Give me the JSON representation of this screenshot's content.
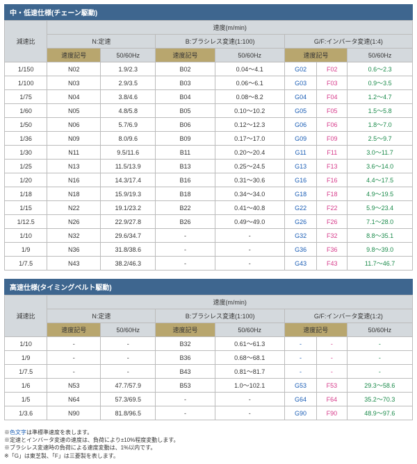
{
  "t1": {
    "title": "中・低速仕様(チェーン駆動)",
    "h_speed": "速度(m/min)",
    "h_ratio": "減速比",
    "h_n": "N:定速",
    "h_b": "B:ブラシレス変速(1:100)",
    "h_gf": "G/F:インバータ変速(1:4)",
    "h_code": "速度記号",
    "h_hz": "50/60Hz",
    "rows": [
      [
        "1/150",
        "N02",
        "1.9/2.3",
        "B02",
        "0.04～4.1",
        "G02",
        "F02",
        "0.6～2.3"
      ],
      [
        "1/100",
        "N03",
        "2.9/3.5",
        "B03",
        "0.06～6.1",
        "G03",
        "F03",
        "0.9～3.5"
      ],
      [
        "1/75",
        "N04",
        "3.8/4.6",
        "B04",
        "0.08～8.2",
        "G04",
        "F04",
        "1.2～4.7"
      ],
      [
        "1/60",
        "N05",
        "4.8/5.8",
        "B05",
        "0.10～10.2",
        "G05",
        "F05",
        "1.5～5.8"
      ],
      [
        "1/50",
        "N06",
        "5.7/6.9",
        "B06",
        "0.12～12.3",
        "G06",
        "F06",
        "1.8～7.0"
      ],
      [
        "1/36",
        "N09",
        "8.0/9.6",
        "B09",
        "0.17～17.0",
        "G09",
        "F09",
        "2.5～9.7"
      ],
      [
        "1/30",
        "N11",
        "9.5/11.6",
        "B11",
        "0.20～20.4",
        "G11",
        "F11",
        "3.0～11.7"
      ],
      [
        "1/25",
        "N13",
        "11.5/13.9",
        "B13",
        "0.25～24.5",
        "G13",
        "F13",
        "3.6～14.0"
      ],
      [
        "1/20",
        "N16",
        "14.3/17.4",
        "B16",
        "0.31～30.6",
        "G16",
        "F16",
        "4.4～17.5"
      ],
      [
        "1/18",
        "N18",
        "15.9/19.3",
        "B18",
        "0.34～34.0",
        "G18",
        "F18",
        "4.9～19.5"
      ],
      [
        "1/15",
        "N22",
        "19.1/23.2",
        "B22",
        "0.41～40.8",
        "G22",
        "F22",
        "5.9～23.4"
      ],
      [
        "1/12.5",
        "N26",
        "22.9/27.8",
        "B26",
        "0.49～49.0",
        "G26",
        "F26",
        "7.1～28.0"
      ],
      [
        "1/10",
        "N32",
        "29.6/34.7",
        "-",
        "-",
        "G32",
        "F32",
        "8.8～35.1"
      ],
      [
        "1/9",
        "N36",
        "31.8/38.6",
        "-",
        "-",
        "G36",
        "F36",
        "9.8～39.0"
      ],
      [
        "1/7.5",
        "N43",
        "38.2/46.3",
        "-",
        "-",
        "G43",
        "F43",
        "11.7～46.7"
      ]
    ]
  },
  "t2": {
    "title": "高速仕様(タイミングベルト駆動)",
    "h_speed": "速度(m/min)",
    "h_ratio": "減速比",
    "h_n": "N:定速",
    "h_b": "B:ブラシレス変速(1:100)",
    "h_gf": "G/F:インバータ変速(1:2)",
    "h_code": "速度記号",
    "h_hz": "50/60Hz",
    "rows": [
      [
        "1/10",
        "-",
        "-",
        "B32",
        "0.61～61.3",
        "-",
        "-",
        "-"
      ],
      [
        "1/9",
        "-",
        "-",
        "B36",
        "0.68～68.1",
        "-",
        "-",
        "-"
      ],
      [
        "1/7.5",
        "-",
        "-",
        "B43",
        "0.81～81.7",
        "-",
        "-",
        "-"
      ],
      [
        "1/6",
        "N53",
        "47.7/57.9",
        "B53",
        "1.0～102.1",
        "G53",
        "F53",
        "29.3～58.6"
      ],
      [
        "1/5",
        "N64",
        "57.3/69.5",
        "-",
        "-",
        "G64",
        "F64",
        "35.2～70.3"
      ],
      [
        "1/3.6",
        "N90",
        "81.8/96.5",
        "-",
        "-",
        "G90",
        "F90",
        "48.9～97.6"
      ]
    ]
  },
  "notes": [
    "※色文字は準標準速度を表します。",
    "※定速とインバータ変速の速度は、負荷により±10%程度変動します。",
    "※ブラシレス変速時の負荷による速度変動は、1%以内です。",
    "※「G」は東芝製、「F」は三菱製を表します。"
  ]
}
